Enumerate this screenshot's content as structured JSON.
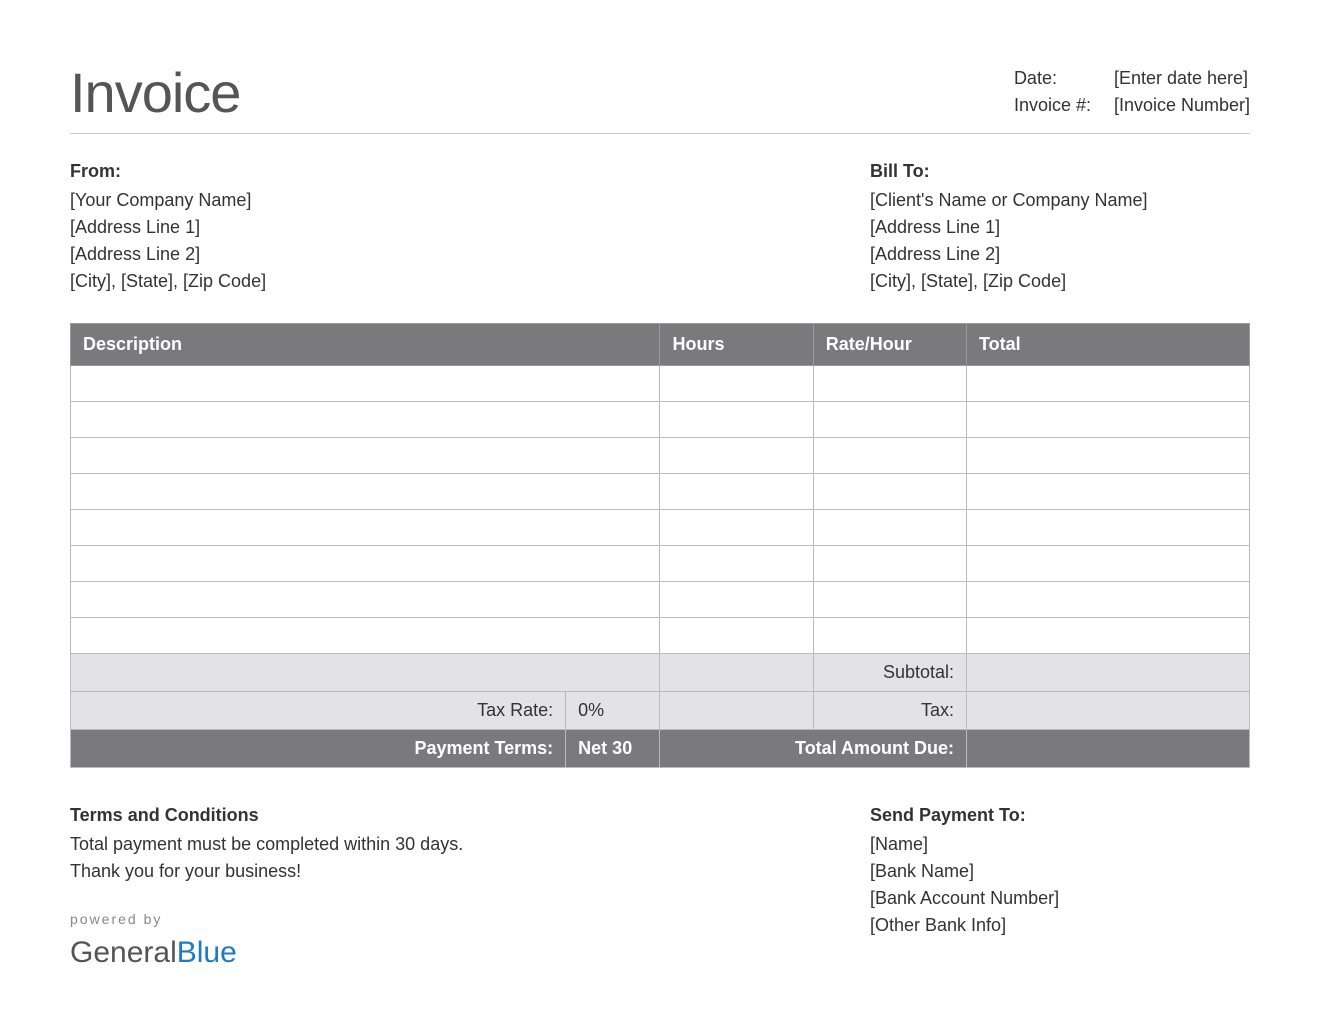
{
  "header": {
    "title": "Invoice",
    "date_label": "Date:",
    "date_value": "[Enter date here]",
    "invoice_num_label": "Invoice #:",
    "invoice_num_value": "[Invoice Number]"
  },
  "from": {
    "heading": "From:",
    "line1": "[Your Company Name]",
    "line2": "[Address Line 1]",
    "line3": "[Address Line 2]",
    "line4": "[City], [State], [Zip Code]"
  },
  "billto": {
    "heading": "Bill To:",
    "line1": "[Client's Name or Company Name]",
    "line2": "[Address Line 1]",
    "line3": "[Address Line 2]",
    "line4": "[City], [State], [Zip Code]"
  },
  "table": {
    "columns": {
      "description": "Description",
      "hours": "Hours",
      "rate": "Rate/Hour",
      "total": "Total"
    },
    "empty_rows": 8,
    "subtotal_label": "Subtotal:",
    "subtotal_value": "",
    "tax_rate_label": "Tax Rate:",
    "tax_rate_value": "0%",
    "tax_label": "Tax:",
    "tax_value": "",
    "payment_terms_label": "Payment Terms:",
    "payment_terms_value": "Net 30",
    "total_due_label": "Total Amount Due:",
    "total_due_value": ""
  },
  "terms": {
    "heading": "Terms and Conditions",
    "line1": "Total payment must be completed within 30 days.",
    "line2": "Thank you for your business!"
  },
  "payment": {
    "heading": "Send Payment To:",
    "line1": "[Name]",
    "line2": "[Bank Name]",
    "line3": "[Bank Account Number]",
    "line4": "[Other Bank Info]"
  },
  "powered": {
    "label": "powered by",
    "brand1": "General",
    "brand2": "Blue"
  },
  "styling": {
    "header_bg": "#7a7a7d",
    "header_text": "#ffffff",
    "summary_bg": "#e3e3e5",
    "border_color": "#bbbbbb",
    "title_color": "#555555",
    "brand_blue": "#1e7bbf",
    "font_family": "Arial",
    "title_fontsize": 56,
    "body_fontsize": 18
  }
}
